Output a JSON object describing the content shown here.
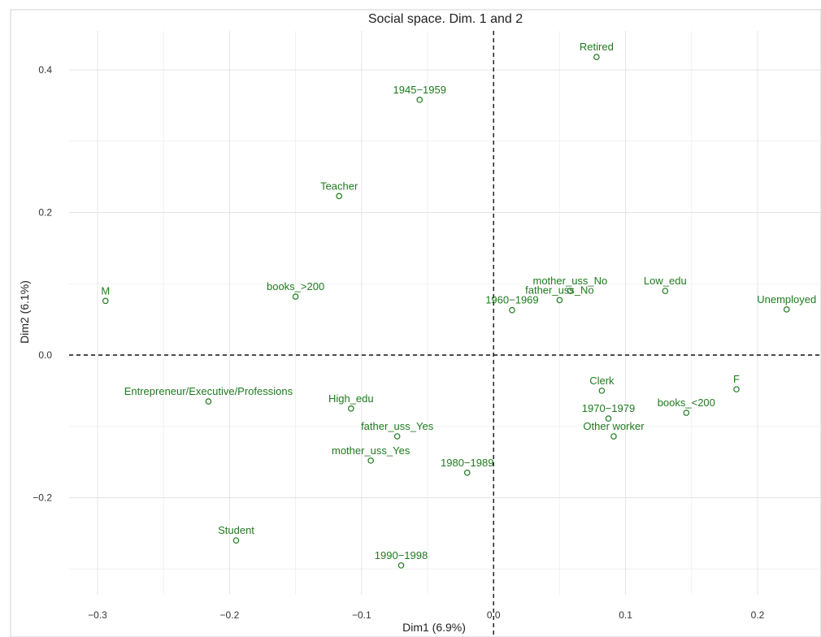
{
  "chart_data": {
    "type": "scatter",
    "title": "Social space. Dim. 1 and 2",
    "xlabel": "Dim1 (6.9%)",
    "ylabel": "Dim2 (6.1%)",
    "xlim": [
      -0.32,
      0.25
    ],
    "ylim": [
      -0.335,
      0.455
    ],
    "x_ticks": [
      -0.3,
      -0.2,
      -0.1,
      0.0,
      0.1,
      0.2
    ],
    "x_tick_labels": [
      "−0.3",
      "−0.2",
      "−0.1",
      "0.0",
      "0.1",
      "0.2"
    ],
    "y_ticks": [
      0.4,
      0.2,
      0.0,
      -0.2
    ],
    "y_tick_labels": [
      "0.4",
      "0.2",
      "0.0",
      "−0.2"
    ],
    "grid": true,
    "reference_lines": {
      "x": 0.0,
      "y": 0.0,
      "style": "dashed"
    },
    "points": [
      {
        "label": "Retired",
        "x": 0.078,
        "y": 0.418
      },
      {
        "label": "1945−1959",
        "x": -0.056,
        "y": 0.358
      },
      {
        "label": "Teacher",
        "x": -0.117,
        "y": 0.223
      },
      {
        "label": "M",
        "x": -0.294,
        "y": 0.076
      },
      {
        "label": "books_>200",
        "x": -0.15,
        "y": 0.082
      },
      {
        "label": "mother_uss_No",
        "x": 0.058,
        "y": 0.09
      },
      {
        "label": "father_uss_No",
        "x": 0.05,
        "y": 0.077
      },
      {
        "label": "1960−1969",
        "x": 0.014,
        "y": 0.063
      },
      {
        "label": "Low_edu",
        "x": 0.13,
        "y": 0.09
      },
      {
        "label": "Unemployed",
        "x": 0.222,
        "y": 0.064
      },
      {
        "label": "Clerk",
        "x": 0.082,
        "y": -0.05
      },
      {
        "label": "F",
        "x": 0.184,
        "y": -0.048
      },
      {
        "label": "1970−1979",
        "x": 0.087,
        "y": -0.089
      },
      {
        "label": "books_<200",
        "x": 0.146,
        "y": -0.081
      },
      {
        "label": "Other worker",
        "x": 0.091,
        "y": -0.114
      },
      {
        "label": "Entrepreneur/Executive/Professions",
        "x": -0.216,
        "y": -0.065
      },
      {
        "label": "High_edu",
        "x": -0.108,
        "y": -0.075
      },
      {
        "label": "father_uss_Yes",
        "x": -0.073,
        "y": -0.114
      },
      {
        "label": "mother_uss_Yes",
        "x": -0.093,
        "y": -0.148
      },
      {
        "label": "1980−1989",
        "x": -0.02,
        "y": -0.165
      },
      {
        "label": "Student",
        "x": -0.195,
        "y": -0.26
      },
      {
        "label": "1990−1998",
        "x": -0.07,
        "y": -0.295
      }
    ],
    "point_color": "#1f7a1f"
  }
}
